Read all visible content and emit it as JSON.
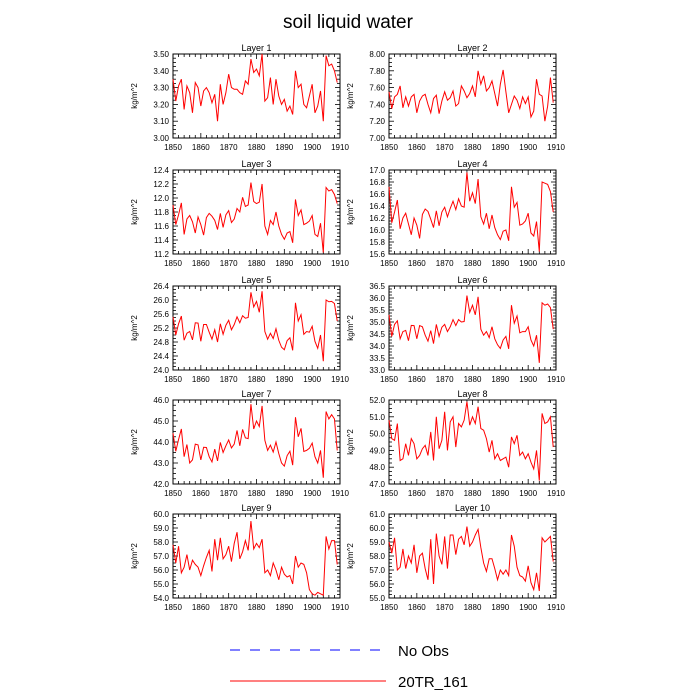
{
  "figure": {
    "title": "soil liquid water"
  },
  "legend": {
    "items": [
      {
        "label": "No Obs",
        "color": "#0000ff",
        "dash": true
      },
      {
        "label": "20TR_161",
        "color": "#ff0000",
        "dash": false
      }
    ]
  },
  "chart_data": [
    {
      "type": "line",
      "title": "Layer 1",
      "ylabel": "kg/m^2",
      "xlim": [
        1850,
        1910
      ],
      "ylim": [
        3.0,
        3.5
      ],
      "xticks": [
        "1850",
        "1860",
        "1870",
        "1880",
        "1890",
        "1900",
        "1910"
      ],
      "yticks": [
        "3.00",
        "3.10",
        "3.20",
        "3.30",
        "3.40",
        "3.50"
      ],
      "series": [
        {
          "x_start": 1850,
          "color": "#ff0000",
          "values": [
            3.35,
            3.22,
            3.31,
            3.35,
            3.17,
            3.31,
            3.27,
            3.15,
            3.33,
            3.3,
            3.19,
            3.28,
            3.3,
            3.27,
            3.21,
            3.26,
            3.1,
            3.32,
            3.2,
            3.27,
            3.38,
            3.3,
            3.29,
            3.29,
            3.27,
            3.26,
            3.34,
            3.32,
            3.47,
            3.39,
            3.41,
            3.37,
            3.5,
            3.22,
            3.24,
            3.36,
            3.2,
            3.35,
            3.25,
            3.2,
            3.23,
            3.16,
            3.19,
            3.14,
            3.4,
            3.3,
            3.32,
            3.2,
            3.18,
            3.25,
            3.32,
            3.15,
            3.19,
            3.28,
            3.1,
            3.49,
            3.43,
            3.44,
            3.4,
            3.33
          ]
        }
      ]
    },
    {
      "type": "line",
      "title": "Layer 2",
      "ylabel": "kg/m^2",
      "xlim": [
        1850,
        1910
      ],
      "ylim": [
        7.0,
        8.0
      ],
      "xticks": [
        "1850",
        "1860",
        "1870",
        "1880",
        "1890",
        "1900",
        "1910"
      ],
      "yticks": [
        "7.00",
        "7.20",
        "7.40",
        "7.60",
        "7.80",
        "8.00"
      ],
      "series": [
        {
          "x_start": 1850,
          "color": "#ff0000",
          "values": [
            7.55,
            7.35,
            7.49,
            7.52,
            7.62,
            7.36,
            7.49,
            7.38,
            7.49,
            7.52,
            7.3,
            7.44,
            7.5,
            7.52,
            7.4,
            7.3,
            7.47,
            7.51,
            7.29,
            7.44,
            7.55,
            7.45,
            7.48,
            7.56,
            7.38,
            7.41,
            7.62,
            7.56,
            7.48,
            7.53,
            7.62,
            7.49,
            7.8,
            7.64,
            7.74,
            7.56,
            7.6,
            7.68,
            7.53,
            7.38,
            7.64,
            7.81,
            7.55,
            7.3,
            7.4,
            7.5,
            7.45,
            7.35,
            7.49,
            7.41,
            7.49,
            7.25,
            7.32,
            7.7,
            7.52,
            7.5,
            7.2,
            7.38,
            7.72,
            7.42
          ]
        }
      ]
    },
    {
      "type": "line",
      "title": "Layer 3",
      "ylabel": "kg/m^2",
      "xlim": [
        1850,
        1910
      ],
      "ylim": [
        11.2,
        12.4
      ],
      "xticks": [
        "1850",
        "1860",
        "1870",
        "1880",
        "1890",
        "1900",
        "1910"
      ],
      "yticks": [
        "11.2",
        "11.4",
        "11.6",
        "11.8",
        "12.0",
        "12.2",
        "12.4"
      ],
      "series": [
        {
          "x_start": 1850,
          "color": "#ff0000",
          "values": [
            11.9,
            11.62,
            11.76,
            11.93,
            11.48,
            11.7,
            11.75,
            11.66,
            11.5,
            11.73,
            11.62,
            11.47,
            11.72,
            11.78,
            11.74,
            11.68,
            11.55,
            11.78,
            11.58,
            11.76,
            11.82,
            11.65,
            11.7,
            11.85,
            11.8,
            12.01,
            11.88,
            11.9,
            12.22,
            11.95,
            11.92,
            11.94,
            12.2,
            11.6,
            11.48,
            11.68,
            11.62,
            11.8,
            11.6,
            11.48,
            11.41,
            11.5,
            11.52,
            11.36,
            11.98,
            11.75,
            11.83,
            11.62,
            11.64,
            11.67,
            11.75,
            11.48,
            11.45,
            11.64,
            11.22,
            12.15,
            12.1,
            12.12,
            12.05,
            11.92
          ]
        }
      ]
    },
    {
      "type": "line",
      "title": "Layer 4",
      "ylabel": "kg/m^2",
      "xlim": [
        1850,
        1910
      ],
      "ylim": [
        15.6,
        17.0
      ],
      "xticks": [
        "1850",
        "1860",
        "1870",
        "1880",
        "1890",
        "1900",
        "1910"
      ],
      "yticks": [
        "15.6",
        "15.8",
        "16.0",
        "16.2",
        "16.4",
        "16.6",
        "16.8",
        "17.0"
      ],
      "series": [
        {
          "x_start": 1850,
          "color": "#ff0000",
          "values": [
            16.72,
            16.12,
            16.3,
            16.5,
            16.02,
            16.2,
            16.28,
            16.1,
            15.92,
            16.2,
            16.08,
            15.86,
            16.26,
            16.35,
            16.31,
            16.18,
            16.04,
            16.32,
            16.07,
            16.3,
            16.38,
            16.22,
            16.36,
            16.48,
            16.34,
            16.52,
            16.4,
            16.38,
            16.96,
            16.48,
            16.62,
            16.44,
            16.85,
            16.22,
            16.1,
            16.28,
            16.02,
            16.25,
            16.04,
            15.92,
            15.84,
            15.98,
            16.0,
            15.82,
            16.72,
            16.38,
            16.46,
            16.08,
            16.1,
            16.15,
            16.28,
            15.95,
            15.9,
            16.14,
            15.64,
            16.8,
            16.78,
            16.76,
            16.64,
            16.3
          ]
        }
      ]
    },
    {
      "type": "line",
      "title": "Layer 5",
      "ylabel": "kg/m^2",
      "xlim": [
        1850,
        1910
      ],
      "ylim": [
        24.0,
        26.4
      ],
      "xticks": [
        "1850",
        "1860",
        "1870",
        "1880",
        "1890",
        "1900",
        "1910"
      ],
      "yticks": [
        "24.0",
        "24.4",
        "24.8",
        "25.2",
        "25.6",
        "26.0",
        "26.4"
      ],
      "series": [
        {
          "x_start": 1850,
          "color": "#ff0000",
          "values": [
            25.52,
            25.0,
            25.32,
            25.54,
            24.85,
            25.05,
            25.1,
            24.86,
            25.35,
            25.34,
            24.82,
            25.3,
            25.3,
            25.08,
            24.88,
            25.15,
            24.8,
            25.32,
            25.02,
            25.28,
            25.42,
            25.15,
            25.3,
            25.52,
            25.35,
            25.55,
            25.48,
            25.5,
            26.22,
            25.8,
            25.96,
            25.65,
            26.25,
            25.1,
            24.88,
            25.05,
            24.9,
            25.18,
            24.85,
            24.65,
            24.58,
            24.84,
            24.92,
            24.56,
            25.92,
            25.4,
            25.58,
            25.02,
            25.1,
            25.08,
            25.25,
            24.82,
            24.62,
            25.0,
            24.25,
            26.0,
            25.95,
            25.96,
            25.9,
            25.4
          ]
        }
      ]
    },
    {
      "type": "line",
      "title": "Layer 6",
      "ylabel": "kg/m^2",
      "xlim": [
        1850,
        1910
      ],
      "ylim": [
        33.0,
        36.5
      ],
      "xticks": [
        "1850",
        "1860",
        "1870",
        "1880",
        "1890",
        "1900",
        "1910"
      ],
      "yticks": [
        "33.0",
        "33.5",
        "34.0",
        "34.5",
        "35.0",
        "35.5",
        "36.0",
        "36.5"
      ],
      "series": [
        {
          "x_start": 1850,
          "color": "#ff0000",
          "values": [
            35.3,
            34.4,
            34.9,
            35.05,
            34.3,
            34.6,
            34.65,
            34.22,
            34.86,
            34.85,
            34.3,
            34.85,
            34.8,
            34.45,
            34.2,
            34.64,
            34.1,
            34.9,
            34.4,
            34.78,
            34.9,
            34.6,
            34.8,
            35.1,
            34.85,
            35.1,
            35.0,
            35.02,
            36.1,
            35.4,
            35.7,
            35.3,
            36.05,
            34.7,
            34.45,
            34.6,
            34.35,
            34.8,
            34.3,
            34.05,
            33.9,
            34.25,
            34.4,
            33.88,
            35.7,
            34.95,
            35.25,
            34.55,
            34.6,
            34.6,
            34.8,
            34.25,
            34.0,
            34.45,
            33.3,
            35.8,
            35.7,
            35.75,
            35.6,
            34.7
          ]
        }
      ]
    },
    {
      "type": "line",
      "title": "Layer 7",
      "ylabel": "kg/m^2",
      "xlim": [
        1850,
        1910
      ],
      "ylim": [
        42.0,
        46.0
      ],
      "xticks": [
        "1850",
        "1860",
        "1870",
        "1880",
        "1890",
        "1900",
        "1910"
      ],
      "yticks": [
        "42.0",
        "43.0",
        "44.0",
        "45.0",
        "46.0"
      ],
      "series": [
        {
          "x_start": 1850,
          "color": "#ff0000",
          "values": [
            44.42,
            43.56,
            44.12,
            44.62,
            43.3,
            43.88,
            43.0,
            43.15,
            43.9,
            43.86,
            43.15,
            43.75,
            43.74,
            43.3,
            43.05,
            43.66,
            43.1,
            43.98,
            43.5,
            43.82,
            44.1,
            43.72,
            43.9,
            44.55,
            43.82,
            44.6,
            44.2,
            44.16,
            45.8,
            44.62,
            45.0,
            44.74,
            45.72,
            44.08,
            43.6,
            43.85,
            43.52,
            44.0,
            43.45,
            43.0,
            42.85,
            43.35,
            43.56,
            42.9,
            45.18,
            44.25,
            44.65,
            43.55,
            43.6,
            43.7,
            43.95,
            43.3,
            43.0,
            43.6,
            42.3,
            45.45,
            45.1,
            45.3,
            45.1,
            43.6
          ]
        }
      ]
    },
    {
      "type": "line",
      "title": "Layer 8",
      "ylabel": "kg/m^2",
      "xlim": [
        1850,
        1910
      ],
      "ylim": [
        47.0,
        52.0
      ],
      "xticks": [
        "1850",
        "1860",
        "1870",
        "1880",
        "1890",
        "1900",
        "1910"
      ],
      "yticks": [
        "47.0",
        "48.0",
        "49.0",
        "50.0",
        "51.0",
        "52.0"
      ],
      "series": [
        {
          "x_start": 1850,
          "color": "#ff0000",
          "values": [
            50.8,
            49.7,
            49.6,
            50.6,
            48.4,
            48.5,
            49.4,
            48.7,
            49.7,
            49.4,
            48.5,
            48.7,
            49.1,
            49.3,
            48.7,
            50.1,
            48.4,
            51.0,
            49.1,
            49.6,
            51.3,
            49.0,
            50.7,
            51.0,
            49.2,
            50.6,
            50.4,
            50.8,
            51.9,
            50.5,
            51.0,
            50.6,
            51.6,
            50.3,
            50.2,
            49.7,
            48.9,
            49.6,
            48.5,
            48.8,
            48.4,
            48.5,
            48.6,
            48.0,
            49.8,
            49.4,
            49.9,
            48.7,
            48.9,
            48.5,
            48.8,
            48.3,
            47.9,
            49.0,
            47.2,
            51.2,
            50.6,
            50.7,
            51.0,
            49.2
          ]
        }
      ]
    },
    {
      "type": "line",
      "title": "Layer 9",
      "ylabel": "kg/m^2",
      "xlim": [
        1850,
        1910
      ],
      "ylim": [
        54.0,
        60.0
      ],
      "xticks": [
        "1850",
        "1860",
        "1870",
        "1880",
        "1890",
        "1900",
        "1910"
      ],
      "yticks": [
        "54.0",
        "55.0",
        "56.0",
        "57.0",
        "58.0",
        "59.0",
        "60.0"
      ],
      "series": [
        {
          "x_start": 1850,
          "color": "#ff0000",
          "values": [
            57.8,
            56.5,
            57.7,
            55.8,
            56.2,
            57.1,
            56.0,
            56.7,
            56.4,
            56.2,
            55.6,
            56.3,
            56.9,
            57.4,
            55.9,
            58.2,
            56.7,
            58.3,
            56.8,
            57.1,
            57.7,
            56.6,
            57.9,
            58.7,
            56.8,
            57.3,
            58.1,
            57.4,
            59.5,
            57.5,
            57.9,
            57.6,
            58.2,
            55.8,
            56.0,
            55.6,
            56.5,
            56.0,
            55.3,
            56.2,
            55.7,
            55.5,
            55.6,
            55.0,
            57.0,
            56.2,
            56.5,
            56.4,
            55.8,
            54.6,
            54.3,
            54.2,
            54.4,
            54.3,
            54.2,
            58.4,
            57.5,
            58.1,
            58.1,
            56.4
          ]
        }
      ]
    },
    {
      "type": "line",
      "title": "Layer 10",
      "ylabel": "kg/m^2",
      "xlim": [
        1850,
        1910
      ],
      "ylim": [
        55.0,
        61.0
      ],
      "xticks": [
        "1850",
        "1860",
        "1870",
        "1880",
        "1890",
        "1900",
        "1910"
      ],
      "yticks": [
        "55.0",
        "56.0",
        "57.0",
        "58.0",
        "59.0",
        "60.0",
        "61.0"
      ],
      "series": [
        {
          "x_start": 1850,
          "color": "#ff0000",
          "values": [
            59.0,
            58.2,
            59.3,
            57.0,
            57.2,
            58.5,
            57.1,
            58.0,
            57.5,
            58.8,
            56.8,
            58.0,
            58.2,
            57.1,
            56.3,
            59.2,
            56.0,
            59.6,
            58.0,
            57.4,
            59.4,
            57.1,
            59.5,
            59.5,
            58.1,
            59.2,
            59.4,
            58.8,
            60.1,
            58.7,
            59.0,
            59.5,
            59.9,
            58.6,
            57.5,
            56.9,
            57.8,
            57.8,
            57.1,
            56.3,
            57.0,
            56.7,
            57.0,
            56.6,
            59.5,
            58.7,
            57.2,
            56.6,
            56.5,
            56.2,
            57.3,
            56.1,
            55.6,
            56.8,
            55.5,
            59.3,
            59.0,
            59.2,
            59.4,
            57.6
          ]
        }
      ]
    }
  ]
}
